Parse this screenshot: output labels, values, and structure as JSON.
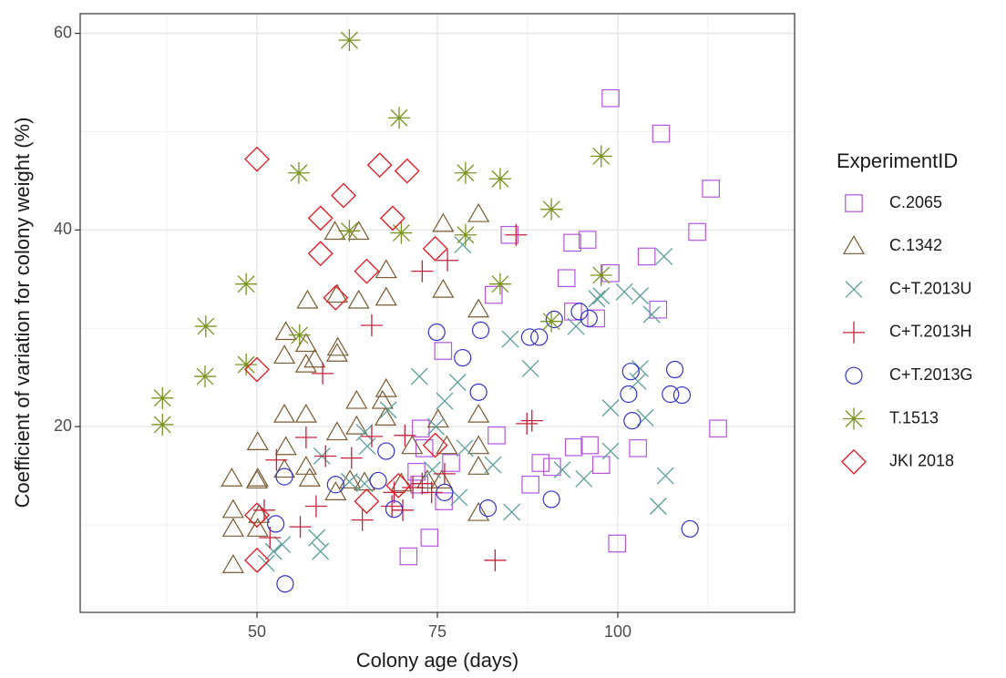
{
  "chart_data": {
    "type": "scatter",
    "x_label": "Colony age (days)",
    "y_label": "Coefficient of variation for colony weight (%)",
    "legend_title": "ExperimentID",
    "legend_position": "right",
    "grid": true,
    "xlim": [
      25.5,
      124.5
    ],
    "xticks": [
      50,
      75,
      100
    ],
    "ylim": [
      1.1,
      62.0
    ],
    "yticks": [
      20,
      40,
      60
    ],
    "series": [
      {
        "name": "C.2065",
        "color": "#b455e0",
        "shape": "square",
        "x": [
          99,
          106,
          112.9,
          111,
          104,
          99,
          95.8,
          93.7,
          85,
          92.9,
          93.8,
          97,
          105.6,
          82.8,
          75.8,
          72.7,
          73.2,
          83.2,
          89.3,
          90.9,
          93.9,
          96.1,
          97.7,
          102.8,
          113.9,
          87.9,
          72.1,
          76.9,
          75.9,
          71,
          73.9,
          99.9,
          72.5
        ],
        "y": [
          53.4,
          49.8,
          44.2,
          39.8,
          37.3,
          35.6,
          39,
          38.7,
          39.5,
          35.1,
          31.7,
          31,
          31.9,
          33.4,
          27.7,
          19.8,
          17.8,
          19.1,
          16.3,
          15.9,
          17.9,
          18.1,
          16.1,
          17.8,
          19.8,
          14.1,
          15.4,
          16.3,
          12.4,
          6.8,
          8.7,
          8.1,
          14.1
        ]
      },
      {
        "name": "C.1342",
        "color": "#7a5a32",
        "shape": "triangle",
        "x": [
          57,
          58,
          54,
          53.8,
          56.8,
          56.8,
          60.8,
          64.1,
          67.9,
          75.8,
          80.7,
          75.8,
          80.7,
          67.9,
          64.1,
          61.1,
          61.2,
          61.1,
          67.9,
          63.8,
          67.8,
          80.7,
          75.1,
          56.8,
          53.8,
          50.1,
          54,
          56.8,
          61.1,
          63.8,
          67.4,
          71.5,
          76.3,
          80.7,
          80.7,
          75.6,
          70,
          64.9,
          60.9,
          57.3,
          53.8,
          50.1,
          50,
          46.5,
          46.7,
          46.7,
          50.3,
          50.1,
          46.7,
          80.7,
          73.6,
          62.9
        ],
        "y": [
          32.8,
          26.8,
          29.6,
          27.2,
          26.3,
          28.4,
          39.8,
          39.8,
          35.9,
          40.6,
          41.6,
          33.9,
          31.9,
          33.1,
          32.8,
          33.4,
          28,
          27.4,
          23.8,
          22.6,
          20.9,
          21.2,
          20.7,
          21.2,
          21.2,
          18.4,
          17.9,
          15.9,
          19.4,
          20,
          22.6,
          18,
          18,
          18,
          15.9,
          14.5,
          14.2,
          14.3,
          13.3,
          14.7,
          15.6,
          14.7,
          14.5,
          14.7,
          11.5,
          9.6,
          11,
          9.6,
          5.9,
          11.2,
          14.5,
          14.5
        ]
      },
      {
        "name": "C+T.2013U",
        "color": "#5b9e9a",
        "shape": "x",
        "x": [
          106.4,
          100.9,
          97.1,
          97.7,
          103.1,
          104.7,
          94.2,
          85.1,
          87.9,
          103.1,
          102.8,
          99,
          103.8,
          95.3,
          106.6,
          105.6,
          99,
          92.3,
          85.3,
          82.7,
          77.8,
          76,
          72.5,
          74.8,
          78.8,
          74.3,
          68.2,
          64.9,
          65.3,
          78,
          59,
          58.3,
          58.8,
          53.5,
          52.3,
          51.3,
          62.8,
          64.9,
          78.5
        ],
        "y": [
          37.3,
          33.7,
          33,
          33.3,
          33.3,
          31.4,
          30.2,
          28.9,
          25.9,
          25.9,
          24.6,
          21.9,
          20.9,
          14.7,
          15,
          11.9,
          17.5,
          15.6,
          11.3,
          16.1,
          24.5,
          22.6,
          25.1,
          20,
          17.8,
          15.6,
          21.7,
          19.4,
          18,
          12.8,
          17,
          8.7,
          7.3,
          8,
          7.3,
          6.1,
          14.4,
          14.2,
          38.5
        ]
      },
      {
        "name": "C+T.2013H",
        "color": "#c8203a",
        "shape": "plus",
        "x": [
          85.9,
          76.4,
          72.9,
          65.9,
          59.1,
          56.8,
          63.1,
          59.5,
          52.7,
          51,
          51.8,
          56,
          58.2,
          64.6,
          68.7,
          70.2,
          71.6,
          72.9,
          76,
          87.4,
          88.1,
          83,
          70.5,
          65.9,
          69,
          74.2
        ],
        "y": [
          39.5,
          36.9,
          35.8,
          30.3,
          25.4,
          18.9,
          16.8,
          17,
          16.6,
          11.5,
          8.7,
          9.8,
          11.9,
          10.5,
          11.9,
          11.5,
          13.8,
          14.2,
          15.2,
          20.3,
          20.6,
          6.4,
          19.1,
          19,
          13.3,
          13.3
        ]
      },
      {
        "name": "C+T.2013G",
        "color": "#3333cc",
        "shape": "circle",
        "x": [
          53.9,
          52.6,
          53.8,
          60.9,
          66.8,
          69,
          67.9,
          76,
          82,
          74.9,
          81,
          78.5,
          80.7,
          87.8,
          89.1,
          91.2,
          94.7,
          96,
          101.8,
          101.5,
          102,
          107.3,
          107.9,
          108.9,
          110,
          90.8
        ],
        "y": [
          4,
          10.1,
          14.9,
          14.1,
          14.5,
          11.6,
          17.5,
          13.3,
          11.7,
          29.6,
          29.8,
          27,
          23.5,
          29.1,
          29.1,
          30.9,
          31.7,
          31,
          25.6,
          23.3,
          20.6,
          23.3,
          25.8,
          23.2,
          9.6,
          12.6
        ]
      },
      {
        "name": "T.1513",
        "color": "#7a9420",
        "shape": "asterisk",
        "x": [
          62.8,
          69.7,
          97.7,
          55.8,
          78.9,
          83.7,
          90.8,
          62.8,
          70,
          78.9,
          97.7,
          83.7,
          48.5,
          42.9,
          90.8,
          55.9,
          48.5,
          42.8,
          36.9,
          36.9
        ],
        "y": [
          59.3,
          51.4,
          47.5,
          45.8,
          45.8,
          45.2,
          42.1,
          39.9,
          39.7,
          39.5,
          35.4,
          34.5,
          34.5,
          30.2,
          30.7,
          29.3,
          26.3,
          25.1,
          22.9,
          20.2
        ]
      },
      {
        "name": "JKI 2018",
        "color": "#e8141e",
        "shape": "diamond",
        "x": [
          50,
          67,
          70.8,
          62,
          58.8,
          68.8,
          58.8,
          74.7,
          65.2,
          60.9,
          50,
          74.7,
          69.6,
          65.2,
          50,
          50
        ],
        "y": [
          47.2,
          46.6,
          46,
          43.5,
          41.2,
          41.2,
          37.6,
          38.1,
          35.8,
          33.1,
          25.8,
          18.1,
          14,
          12.4,
          11,
          6.4
        ]
      }
    ]
  }
}
